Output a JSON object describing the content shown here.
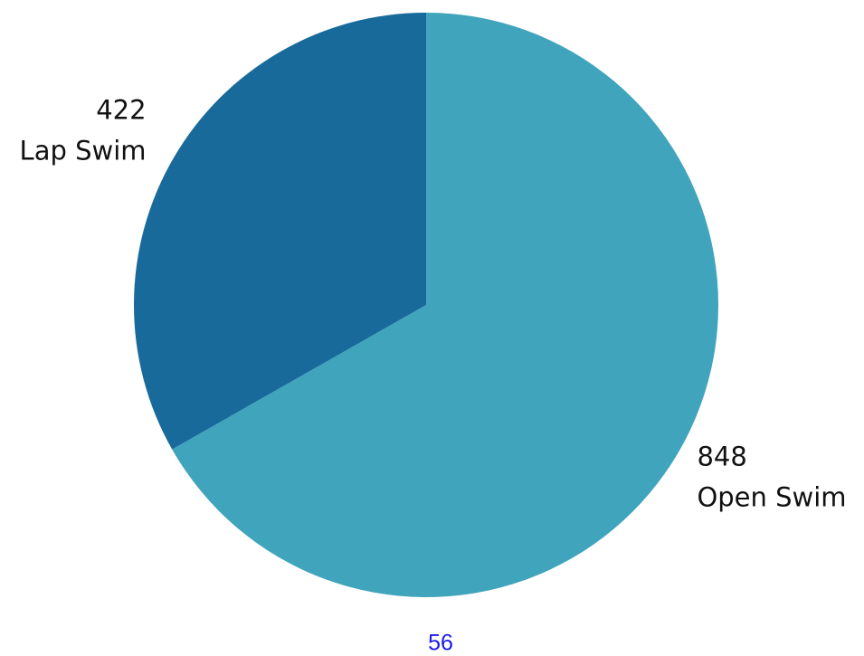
{
  "chart_data": {
    "type": "pie",
    "categories": [
      "Open Swim",
      "Lap Swim"
    ],
    "values": [
      848,
      422
    ],
    "colors": [
      "#40a4bd",
      "#186a9b"
    ],
    "start_angle": 0,
    "direction": "clockwise",
    "annotations": [
      "56"
    ]
  }
}
